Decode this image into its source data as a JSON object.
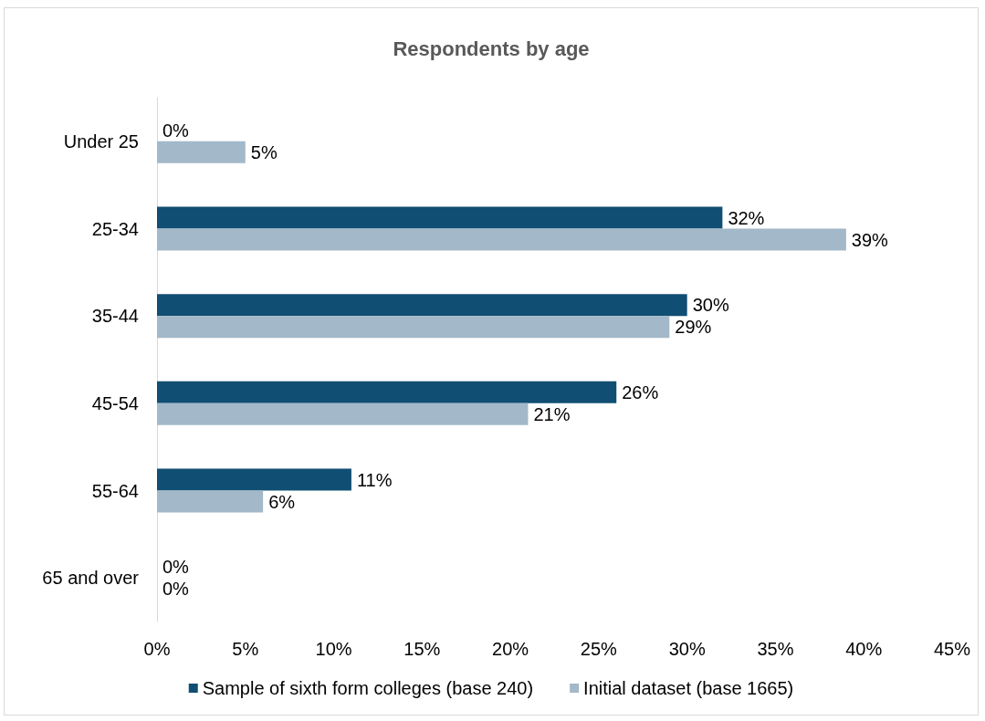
{
  "chart_data": {
    "type": "bar",
    "orientation": "horizontal",
    "title": "Respondents by age",
    "categories": [
      "Under 25",
      "25-34",
      "35-44",
      "45-54",
      "55-64",
      "65 and over"
    ],
    "series": [
      {
        "name": "Sample of sixth form colleges (base 240)",
        "color": "#104e73",
        "values": [
          0,
          32,
          30,
          26,
          11,
          0
        ],
        "value_labels": [
          "0%",
          "32%",
          "30%",
          "26%",
          "11%",
          "0%"
        ]
      },
      {
        "name": "Initial dataset (base 1665)",
        "color": "#a3b8c8",
        "values": [
          5,
          39,
          29,
          21,
          6,
          0
        ],
        "value_labels": [
          "5%",
          "39%",
          "29%",
          "21%",
          "6%",
          "0%"
        ]
      }
    ],
    "xlim": [
      0,
      45
    ],
    "xticks": [
      {
        "value": 0,
        "label": "0%"
      },
      {
        "value": 5,
        "label": "5%"
      },
      {
        "value": 10,
        "label": "10%"
      },
      {
        "value": 15,
        "label": "15%"
      },
      {
        "value": 20,
        "label": "20%"
      },
      {
        "value": 25,
        "label": "25%"
      },
      {
        "value": 30,
        "label": "30%"
      },
      {
        "value": 35,
        "label": "35%"
      },
      {
        "value": 40,
        "label": "40%"
      },
      {
        "value": 45,
        "label": "45%"
      }
    ],
    "grid": false,
    "legend": "bottom"
  }
}
